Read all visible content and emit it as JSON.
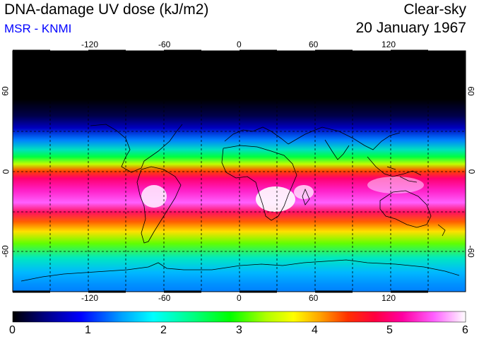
{
  "header": {
    "title": "DNA-damage UV dose (kJ/m2)",
    "subtitle": "MSR - KNMI",
    "sky_condition": "Clear-sky",
    "date": "20 January 1967"
  },
  "colors": {
    "subtitle": "#0000ff",
    "frame": "#000000",
    "grid": "#000000",
    "coastline": "#000000"
  },
  "map": {
    "projection": "equirectangular",
    "lon_range": [
      -180,
      180
    ],
    "lat_range": [
      -90,
      90
    ],
    "lon_ticks": [
      "-120",
      "-60",
      "0",
      "60",
      "120"
    ],
    "lat_ticks": [
      "60",
      "0",
      "-60"
    ],
    "grid_lines": "dashed, every 30 degrees"
  },
  "colorbar": {
    "min": 0,
    "max": 6,
    "labels": [
      "0",
      "1",
      "2",
      "3",
      "4",
      "5",
      "6"
    ],
    "color_stops": [
      "#000000",
      "#000080",
      "#0000ff",
      "#00a0ff",
      "#00ffff",
      "#00ff80",
      "#00ff00",
      "#b0ff00",
      "#ffff00",
      "#ffa000",
      "#ff3000",
      "#ff0040",
      "#ff00a0",
      "#ff60ff",
      "#ffffff"
    ]
  }
}
